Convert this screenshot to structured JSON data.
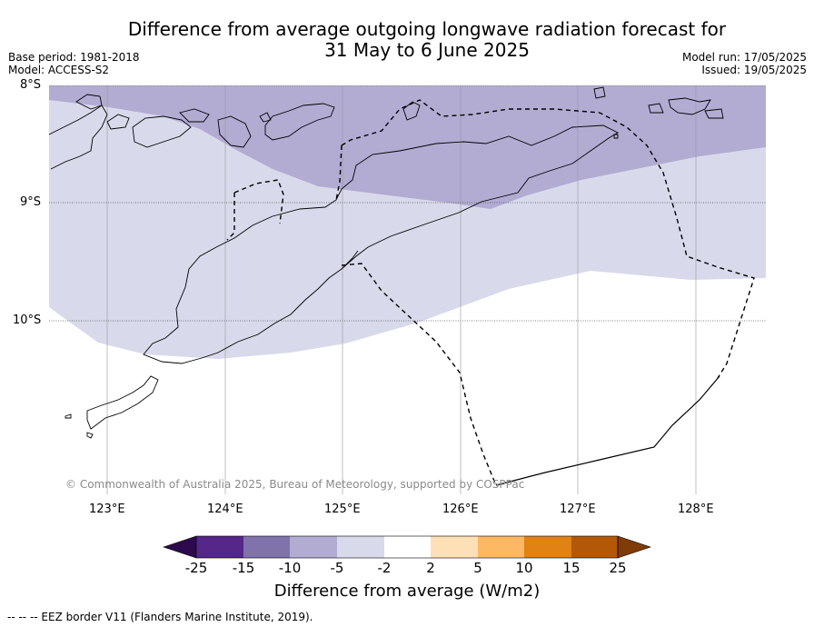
{
  "title_line1": "Difference from average outgoing longwave radiation forecast for",
  "title_line2": "31 May to 6 June 2025",
  "base_period": "Base period: 1981-2018",
  "model": "Model: ACCESS-S2",
  "model_run": "Model run: 17/05/2025",
  "issued": "Issued: 19/05/2025",
  "lat_labels": [
    "8°S",
    "9°S",
    "10°S"
  ],
  "lon_labels": [
    "123°E",
    "124°E",
    "125°E",
    "126°E",
    "127°E",
    "128°E"
  ],
  "credit": "© Commonwealth of Australia 2025, Bureau of Meteorology, supported by COSPPac",
  "colorbar": {
    "title": "Difference from average (W/m2)",
    "ticks": [
      "-25",
      "-15",
      "-10",
      "-5",
      "-2",
      "2",
      "5",
      "10",
      "15",
      "25"
    ],
    "colors": {
      "below_-25": "#2d0a4e",
      "-25_-15": "#542788",
      "-15_-10": "#8073ac",
      "-10_-5": "#b2abd2",
      "-5_-2": "#d8daeb",
      "-2_2": "#ffffff",
      "2_5": "#fee0b6",
      "5_10": "#fdb863",
      "10_15": "#e08214",
      "15_25": "#b35806",
      "above_25": "#7f3b08"
    }
  },
  "footnote": "--  --  -- EEZ border V11 (Flanders Marine Institute, 2019)."
}
